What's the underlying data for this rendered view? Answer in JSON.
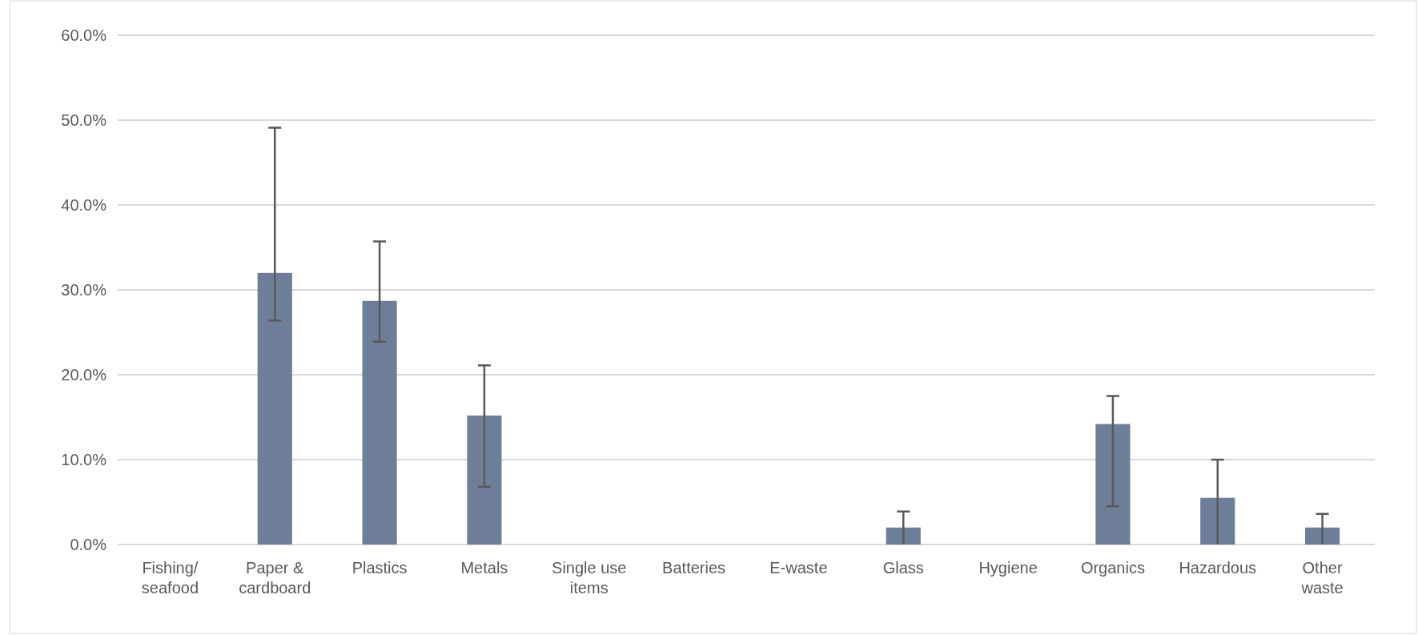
{
  "chart_data": {
    "type": "bar",
    "categories": [
      "Fishing/\nseafood",
      "Paper &\ncardboard",
      "Plastics",
      "Metals",
      "Single use\nitems",
      "Batteries",
      "E-waste",
      "Glass",
      "Hygiene",
      "Organics",
      "Hazardous",
      "Other\nwaste"
    ],
    "values": [
      0,
      32.0,
      28.7,
      15.2,
      0,
      0,
      0,
      2.0,
      0,
      14.2,
      5.5,
      2.0
    ],
    "errors": [
      null,
      [
        26.4,
        49.1
      ],
      [
        23.9,
        35.7
      ],
      [
        6.8,
        21.1
      ],
      null,
      null,
      null,
      [
        0,
        3.9
      ],
      null,
      [
        4.5,
        17.5
      ],
      [
        0,
        10.0
      ],
      [
        0,
        3.6
      ]
    ],
    "color": "#6e7e99",
    "ylim": [
      0,
      60
    ],
    "yticks": [
      {
        "value": 0,
        "label": "0.0%"
      },
      {
        "value": 10,
        "label": "10.0%"
      },
      {
        "value": 20,
        "label": "20.0%"
      },
      {
        "value": 30,
        "label": "30.0%"
      },
      {
        "value": 40,
        "label": "40.0%"
      },
      {
        "value": 50,
        "label": "50.0%"
      },
      {
        "value": 60,
        "label": "60.0%"
      }
    ],
    "grid": "y"
  }
}
